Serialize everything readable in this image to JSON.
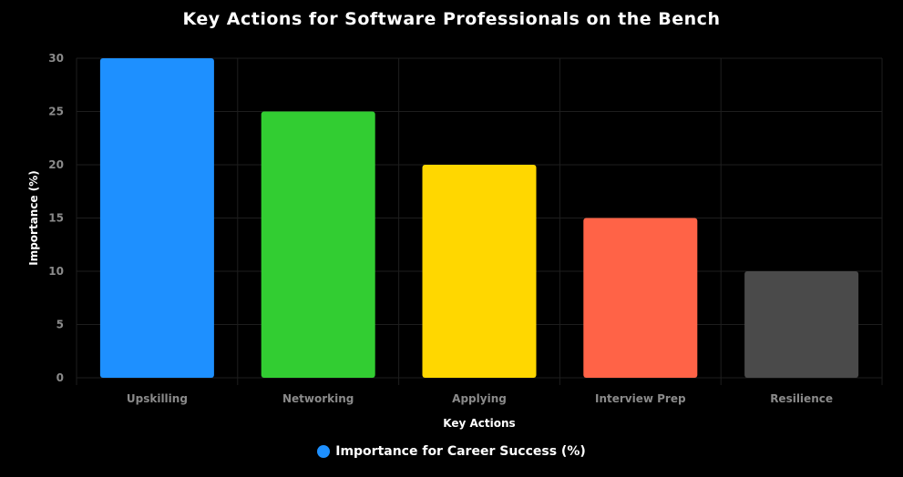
{
  "chart_data": {
    "type": "bar",
    "title": "Key Actions for Software Professionals on the Bench",
    "categories": [
      "Upskilling",
      "Networking",
      "Applying",
      "Interview Prep",
      "Resilience"
    ],
    "series": [
      {
        "name": "Importance for Career Success (%)",
        "values": [
          30,
          25,
          20,
          15,
          10
        ]
      }
    ],
    "colors": [
      "#1E90FF",
      "#32CD32",
      "#FFD700",
      "#FF6347",
      "#4A4A4A"
    ],
    "legend_color": "#1E90FF",
    "xlabel": "Key Actions",
    "ylabel": "Importance (%)",
    "ylim": [
      0,
      30
    ],
    "yticks": [
      0,
      5,
      10,
      15,
      20,
      25,
      30
    ],
    "grid": true,
    "legend_position": "bottom"
  }
}
